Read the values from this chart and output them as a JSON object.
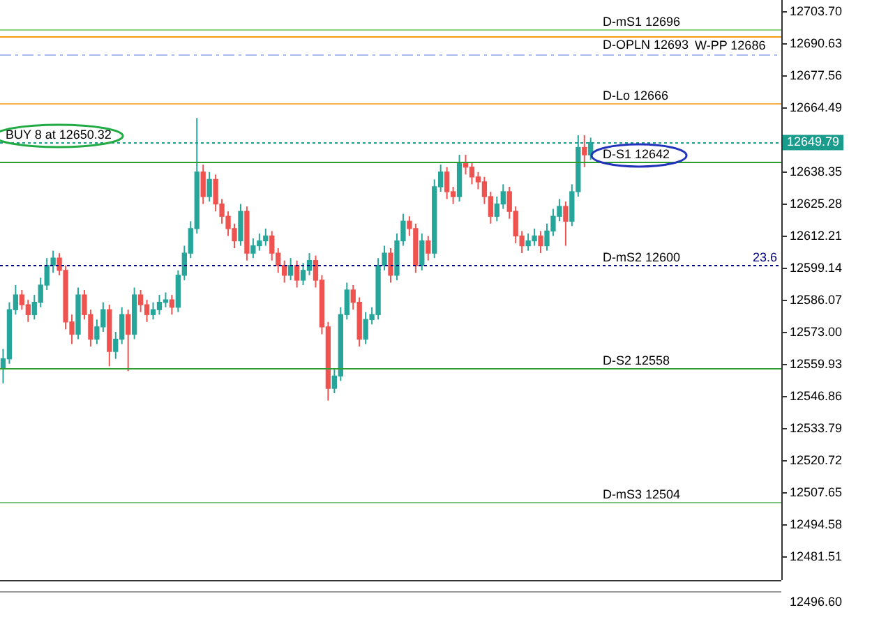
{
  "chart_data": {
    "type": "candlestick",
    "categories": [
      null,
      null,
      null,
      null,
      null,
      null,
      null,
      null,
      null,
      null,
      null,
      null,
      null,
      null,
      null,
      null,
      null,
      null,
      null,
      null,
      null,
      null,
      null,
      null,
      null,
      null,
      null,
      null,
      null,
      null,
      null,
      null,
      null,
      null,
      null,
      null,
      null,
      null,
      null,
      null,
      null,
      null,
      null,
      null,
      null,
      null,
      null,
      null,
      null,
      null,
      null,
      null,
      null,
      null,
      null,
      null,
      null,
      null,
      null,
      null,
      null,
      null,
      null,
      null,
      null,
      null,
      null,
      null,
      null,
      null,
      null,
      null,
      null,
      null,
      null,
      null,
      null,
      null,
      null,
      null,
      null,
      null,
      null,
      null,
      null,
      null,
      null,
      null,
      null,
      null,
      null,
      null,
      null,
      null,
      null,
      null,
      null,
      null,
      null,
      null,
      null,
      null,
      null,
      null,
      null,
      null,
      null,
      null,
      null,
      null,
      null,
      null,
      null,
      null,
      null,
      null,
      null,
      null,
      null,
      null,
      null,
      null,
      null,
      null,
      null
    ],
    "ylim": [
      12472,
      12708
    ],
    "yticks": [
      {
        "value": 12703.7,
        "label": "12703.70"
      },
      {
        "value": 12690.63,
        "label": "12690.63"
      },
      {
        "value": 12677.56,
        "label": "12677.56"
      },
      {
        "value": 12664.49,
        "label": "12664.49"
      },
      {
        "value": 12651.42,
        "label": null
      },
      {
        "value": 12638.35,
        "label": "12638.35"
      },
      {
        "value": 12625.28,
        "label": "12625.28"
      },
      {
        "value": 12612.21,
        "label": "12612.21"
      },
      {
        "value": 12599.14,
        "label": "12599.14"
      },
      {
        "value": 12586.07,
        "label": "12586.07"
      },
      {
        "value": 12573,
        "label": "12573.00"
      },
      {
        "value": 12559.93,
        "label": "12559.93"
      },
      {
        "value": 12546.86,
        "label": "12546.86"
      },
      {
        "value": 12533.79,
        "label": "12533.79"
      },
      {
        "value": 12520.72,
        "label": "12520.72"
      },
      {
        "value": 12507.65,
        "label": "12507.65"
      },
      {
        "value": 12494.58,
        "label": "12494.58"
      },
      {
        "value": 12481.51,
        "label": "12481.51"
      }
    ],
    "tick_labels": "y",
    "ohlc": [
      [
        12558,
        12566,
        12552,
        12562
      ],
      [
        12562,
        12585,
        12560,
        12582
      ],
      [
        12582,
        12592,
        12580,
        12588
      ],
      [
        12588,
        12590,
        12582,
        12584
      ],
      [
        12584,
        12586,
        12577,
        12580
      ],
      [
        12580,
        12588,
        12578,
        12585
      ],
      [
        12585,
        12595,
        12583,
        12592
      ],
      [
        12592,
        12603,
        12590,
        12600
      ],
      [
        12600,
        12606,
        12597,
        12603
      ],
      [
        12603,
        12605,
        12596,
        12598
      ],
      [
        12598,
        12600,
        12574,
        12577
      ],
      [
        12577,
        12580,
        12568,
        12572
      ],
      [
        12572,
        12591,
        12570,
        12588
      ],
      [
        12588,
        12590,
        12578,
        12580
      ],
      [
        12580,
        12582,
        12567,
        12570
      ],
      [
        12570,
        12578,
        12568,
        12575
      ],
      [
        12575,
        12585,
        12573,
        12582
      ],
      [
        12582,
        12584,
        12559,
        12565
      ],
      [
        12565,
        12573,
        12562,
        12570
      ],
      [
        12570,
        12583,
        12568,
        12580
      ],
      [
        12580,
        12582,
        12557,
        12572
      ],
      [
        12572,
        12591,
        12570,
        12588
      ],
      [
        12588,
        12590,
        12581,
        12584
      ],
      [
        12584,
        12586,
        12577,
        12580
      ],
      [
        12580,
        12585,
        12578,
        12582
      ],
      [
        12582,
        12588,
        12580,
        12585
      ],
      [
        12585,
        12589,
        12583,
        12586
      ],
      [
        12586,
        12588,
        12580,
        12583
      ],
      [
        12583,
        12598,
        12581,
        12596
      ],
      [
        12596,
        12608,
        12594,
        12605
      ],
      [
        12605,
        12618,
        12603,
        12615
      ],
      [
        12615,
        12660,
        12613,
        12638
      ],
      [
        12638,
        12641,
        12625,
        12628
      ],
      [
        12628,
        12638,
        12626,
        12635
      ],
      [
        12635,
        12637,
        12622,
        12625
      ],
      [
        12625,
        12627,
        12617,
        12620
      ],
      [
        12620,
        12622,
        12612,
        12615
      ],
      [
        12615,
        12617,
        12607,
        12610
      ],
      [
        12610,
        12625,
        12608,
        12622
      ],
      [
        12622,
        12624,
        12602,
        12605
      ],
      [
        12605,
        12611,
        12603,
        12608
      ],
      [
        12608,
        12613,
        12606,
        12610
      ],
      [
        12610,
        12615,
        12608,
        12612
      ],
      [
        12612,
        12614,
        12602,
        12605
      ],
      [
        12605,
        12607,
        12597,
        12600
      ],
      [
        12600,
        12602,
        12593,
        12596
      ],
      [
        12596,
        12603,
        12594,
        12600
      ],
      [
        12600,
        12602,
        12591,
        12594
      ],
      [
        12594,
        12601,
        12592,
        12598
      ],
      [
        12598,
        12605,
        12596,
        12602
      ],
      [
        12602,
        12604,
        12591,
        12594
      ],
      [
        12594,
        12596,
        12572,
        12575
      ],
      [
        12575,
        12577,
        12545,
        12550
      ],
      [
        12550,
        12558,
        12548,
        12555
      ],
      [
        12555,
        12583,
        12553,
        12580
      ],
      [
        12580,
        12593,
        12578,
        12590
      ],
      [
        12590,
        12592,
        12582,
        12585
      ],
      [
        12585,
        12587,
        12567,
        12570
      ],
      [
        12570,
        12581,
        12568,
        12578
      ],
      [
        12578,
        12583,
        12576,
        12580
      ],
      [
        12580,
        12603,
        12578,
        12600
      ],
      [
        12600,
        12608,
        12598,
        12605
      ],
      [
        12605,
        12607,
        12593,
        12596
      ],
      [
        12596,
        12613,
        12594,
        12610
      ],
      [
        12610,
        12621,
        12608,
        12618
      ],
      [
        12618,
        12620,
        12612,
        12615
      ],
      [
        12615,
        12617,
        12597,
        12600
      ],
      [
        12600,
        12613,
        12598,
        12610
      ],
      [
        12610,
        12612,
        12602,
        12605
      ],
      [
        12605,
        12635,
        12603,
        12632
      ],
      [
        12632,
        12641,
        12630,
        12638
      ],
      [
        12638,
        12640,
        12627,
        12630
      ],
      [
        12630,
        12632,
        12625,
        12628
      ],
      [
        12628,
        12645,
        12626,
        12642
      ],
      [
        12642,
        12645,
        12637,
        12640
      ],
      [
        12640,
        12642,
        12633,
        12636
      ],
      [
        12636,
        12638,
        12631,
        12634
      ],
      [
        12634,
        12636,
        12625,
        12628
      ],
      [
        12628,
        12630,
        12617,
        12620
      ],
      [
        12620,
        12628,
        12618,
        12625
      ],
      [
        12625,
        12633,
        12623,
        12630
      ],
      [
        12630,
        12632,
        12619,
        12622
      ],
      [
        12622,
        12624,
        12609,
        12612
      ],
      [
        12612,
        12614,
        12605,
        12608
      ],
      [
        12608,
        12613,
        12606,
        12610
      ],
      [
        12610,
        12615,
        12608,
        12612
      ],
      [
        12612,
        12614,
        12605,
        12608
      ],
      [
        12608,
        12617,
        12606,
        12614
      ],
      [
        12614,
        12623,
        12612,
        12620
      ],
      [
        12620,
        12627,
        12618,
        12624
      ],
      [
        12624,
        12626,
        12608,
        12618
      ],
      [
        12618,
        12633,
        12616,
        12630
      ],
      [
        12630,
        12653,
        12628,
        12648
      ],
      [
        12648,
        12653,
        12640,
        12645
      ],
      [
        12645,
        12652,
        12643,
        12650
      ],
      null,
      null,
      null,
      null,
      null,
      null,
      null,
      null,
      null,
      null,
      null,
      null,
      null,
      null,
      null,
      null,
      null,
      null,
      null,
      null,
      null,
      null,
      null,
      null,
      null,
      null,
      null,
      null,
      null,
      null
    ],
    "colors": [
      "#26a69a",
      "#26a69a",
      "#26a69a",
      "#ef5350",
      "#ef5350",
      "#26a69a",
      "#26a69a",
      "#26a69a",
      "#26a69a",
      "#ef5350",
      "#ef5350",
      "#ef5350",
      "#26a69a",
      "#ef5350",
      "#ef5350",
      "#26a69a",
      "#26a69a",
      "#ef5350",
      "#26a69a",
      "#26a69a",
      "#ef5350",
      "#26a69a",
      "#ef5350",
      "#ef5350",
      "#26a69a",
      "#26a69a",
      "#26a69a",
      "#ef5350",
      "#26a69a",
      "#26a69a",
      "#26a69a",
      "#26a69a",
      "#ef5350",
      "#26a69a",
      "#ef5350",
      "#ef5350",
      "#ef5350",
      "#ef5350",
      "#26a69a",
      "#ef5350",
      "#26a69a",
      "#26a69a",
      "#26a69a",
      "#ef5350",
      "#ef5350",
      "#ef5350",
      "#26a69a",
      "#ef5350",
      "#26a69a",
      "#26a69a",
      "#ef5350",
      "#ef5350",
      "#ef5350",
      "#26a69a",
      "#26a69a",
      "#26a69a",
      "#ef5350",
      "#ef5350",
      "#26a69a",
      "#26a69a",
      "#26a69a",
      "#26a69a",
      "#ef5350",
      "#26a69a",
      "#26a69a",
      "#ef5350",
      "#ef5350",
      "#26a69a",
      "#ef5350",
      "#26a69a",
      "#26a69a",
      "#ef5350",
      "#ef5350",
      "#26a69a",
      "#ef5350",
      "#ef5350",
      "#ef5350",
      "#ef5350",
      "#ef5350",
      "#26a69a",
      "#26a69a",
      "#ef5350",
      "#ef5350",
      "#ef5350",
      "#26a69a",
      "#26a69a",
      "#ef5350",
      "#26a69a",
      "#26a69a",
      "#26a69a",
      "#ef5350",
      "#26a69a",
      "#26a69a",
      "#ef5350",
      "#26a69a",
      null,
      null,
      null,
      null,
      null,
      null,
      null,
      null,
      null,
      null,
      null,
      null,
      null,
      null,
      null,
      null,
      null,
      null,
      null,
      null,
      null,
      null,
      null,
      null,
      null,
      null,
      null,
      null,
      null,
      null
    ],
    "ref_lines": [
      {
        "axis": "y",
        "value": 12696,
        "label": "D-mS1 12696",
        "color": "#8fcf7f",
        "line_style": "solid"
      },
      {
        "axis": "y",
        "value": 12693,
        "label": "D-OPLN 12693",
        "color": "#f39c12",
        "line_style": "solid"
      },
      {
        "axis": "y",
        "value": 12686,
        "label": "W-PP 12686",
        "color": "#a9b9f2",
        "line_style": "dashdot"
      },
      {
        "axis": "y",
        "value": 12666,
        "label": "D-Lo 12666",
        "color": "#ffad4a",
        "line_style": "solid"
      },
      {
        "axis": "y",
        "value": 12650.32,
        "label": "BUY 8 at 12650.32",
        "color": "#1a9c8c",
        "line_style": "dotted"
      },
      {
        "axis": "y",
        "value": 12642,
        "label": "D-S1 12642",
        "color": "#2e9e2e",
        "line_style": "solid"
      },
      {
        "axis": "y",
        "value": 12600,
        "label": "D-mS2 12600",
        "color": "#000080",
        "line_style": "dotted"
      },
      {
        "axis": "y",
        "value": 12558,
        "label": "D-S2 12558",
        "color": "#2e9e2e",
        "line_style": "solid"
      },
      {
        "axis": "y",
        "value": 12504,
        "label": "D-mS3 12504",
        "color": "#7cc47c",
        "line_style": "solid"
      }
    ],
    "annotations": [
      {
        "text": "23.6",
        "y": 12600
      },
      "12649.79",
      "12496.60"
    ]
  }
}
